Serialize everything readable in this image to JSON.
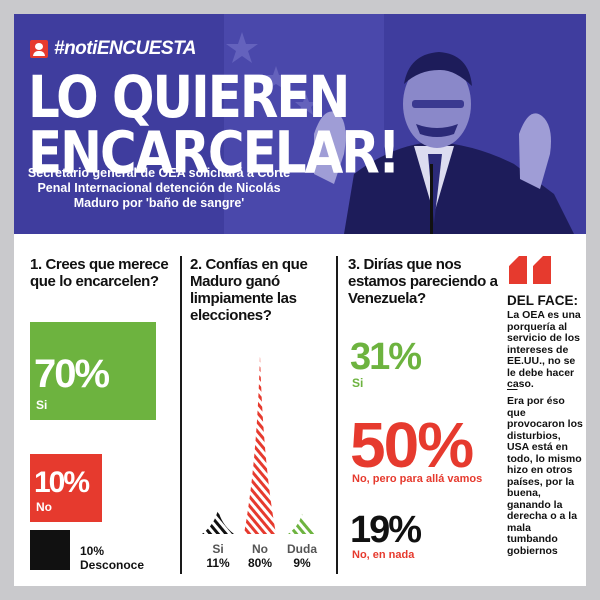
{
  "header": {
    "tag": "#notiENCUESTA",
    "headline_line1": "LO QUIEREN",
    "headline_line2": "ENCARCELAR!",
    "subhead": "Secretario general de OEA solicitará a Corte Penal Internacional detención de Nicolás Maduro por 'baño de sangre'"
  },
  "q1": {
    "question": "1. Crees que merece que lo encarcelen?",
    "answers": [
      {
        "percent": "70%",
        "label": "Si",
        "value": 70,
        "color": "#6db33f"
      },
      {
        "percent": "10%",
        "label": "No",
        "value": 10,
        "color": "#e63a2e"
      },
      {
        "percent": "10%",
        "label": "Desconoce",
        "value": 10,
        "color": "#111111"
      }
    ]
  },
  "q2": {
    "question": "2. Confías en que Maduro ganó limpiamente las elecciones?",
    "answers": [
      {
        "label": "Si",
        "percent": "11%",
        "value": 11,
        "color": "#111111"
      },
      {
        "label": "No",
        "percent": "80%",
        "value": 80,
        "color": "#e63a2e"
      },
      {
        "label": "Duda",
        "percent": "9%",
        "value": 9,
        "color": "#6db33f"
      }
    ]
  },
  "q3": {
    "question": "3. Dirías que nos estamos pareciendo a Venezuela?",
    "answers": [
      {
        "percent": "31%",
        "label": "Si",
        "color": "#6db33f"
      },
      {
        "percent": "50%",
        "label": "No, pero para allá vamos",
        "color": "#e63a2e"
      },
      {
        "percent": "19%",
        "label": "No, en nada",
        "color": "#111111"
      }
    ]
  },
  "sidebar": {
    "title": "DEL FACE:",
    "quote1": "La OEA es una porquería al servicio de los intereses de EE.UU., no se le debe hacer caso.",
    "separator": "—",
    "quote2": "Era por éso que provocaron los disturbios, USA está en todo, lo mismo hizo en otros países, por la buena, ganando la derecha o a la mala tumbando gobiernos"
  }
}
